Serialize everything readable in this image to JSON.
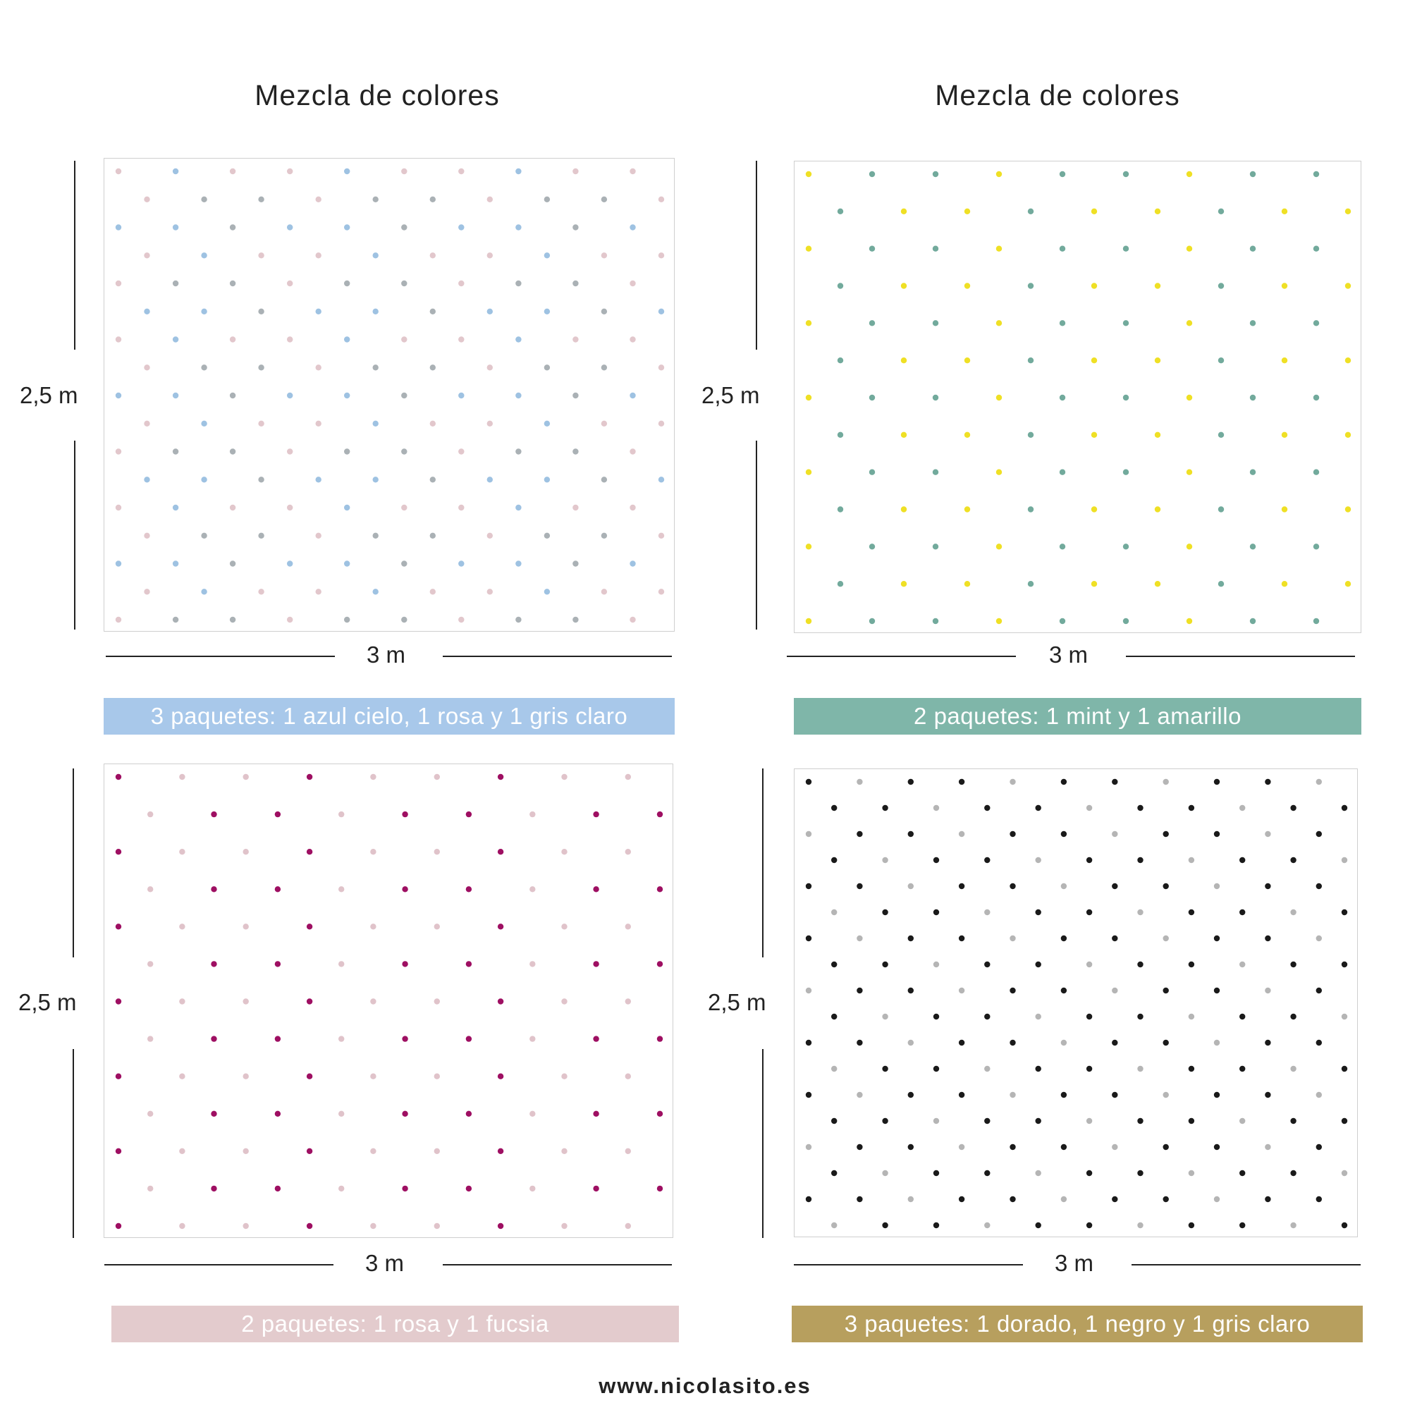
{
  "panels": [
    {
      "id": "p1",
      "title": "Mezcla de colores",
      "height_label": "2,5 m",
      "width_label": "3 m",
      "banner": {
        "text": "3 paquetes: 1 azul cielo, 1 rosa y 1 gris claro",
        "color": "#a8c8ea"
      },
      "dot_colors": [
        "#aab1b5",
        "#e2c7cc",
        "#9ec2e2"
      ],
      "rows": 17,
      "cols": 10
    },
    {
      "id": "p2",
      "title": "Mezcla de colores",
      "height_label": "2,5 m",
      "width_label": "3 m",
      "banner": {
        "text": "2 paquetes: 1 mint y 1 amarillo",
        "color": "#7fb6a9"
      },
      "dot_colors": [
        "#72aa9c",
        "#efe025"
      ],
      "rows": 13,
      "cols": 9
    },
    {
      "id": "p3",
      "title": "",
      "height_label": "2,5 m",
      "width_label": "3 m",
      "banner": {
        "text": "2 paquetes: 1 rosa y 1 fucsia",
        "color": "#e3cbcd"
      },
      "dot_colors": [
        "#e0c3ca",
        "#9e0f62"
      ],
      "rows": 13,
      "cols": 9
    },
    {
      "id": "p4",
      "title": "",
      "height_label": "2,5 m",
      "width_label": "3 m",
      "banner": {
        "text": "3 paquetes: 1 dorado, 1 negro y 1 gris claro",
        "color": "#b79f5e"
      },
      "dot_colors": [
        "#b9924a",
        "#1a1a1a",
        "#b5b5b5"
      ],
      "rows": 18,
      "cols": 11
    }
  ],
  "footer": "www.nicolasito.es"
}
